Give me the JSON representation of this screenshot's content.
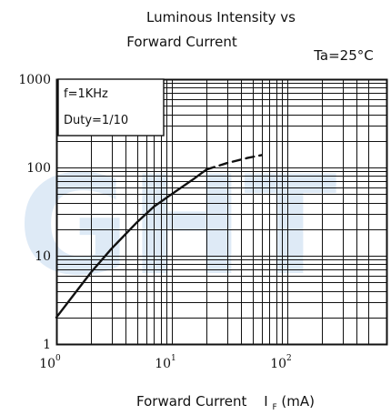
{
  "chart_data": {
    "type": "line",
    "title_line1": "Luminous Intensity vs",
    "title_line2": "Forward Current",
    "condition": "Ta=25°C",
    "xlabel_prefix": "Forward Current",
    "xlabel_symbol": "I",
    "xlabel_sub": "F",
    "xlabel_unit": "(mA)",
    "x_scale": "log",
    "y_scale": "log",
    "xlim": [
      1,
      500
    ],
    "ylim": [
      1,
      1000
    ],
    "grid": true,
    "x_ticks": [
      {
        "base": "10",
        "exp": "0"
      },
      {
        "base": "10",
        "exp": "1"
      },
      {
        "base": "10",
        "exp": "2"
      }
    ],
    "y_ticks": [
      "1000",
      "100",
      "10",
      "1"
    ],
    "legend_lines": [
      "f=1KHz",
      "Duty=1/10"
    ],
    "legend_placement": "top-left",
    "watermark": "GHT",
    "watermark_color": "#dbe8f6",
    "series": [
      {
        "style": "solid",
        "x": [
          1,
          1.5,
          2,
          3,
          5,
          7,
          10,
          15,
          20
        ],
        "y": [
          2.0,
          4.0,
          6.5,
          12,
          24,
          36,
          50,
          72,
          95
        ]
      },
      {
        "style": "dashed",
        "x": [
          20,
          30,
          45,
          60
        ],
        "y": [
          95,
          112,
          128,
          138
        ]
      }
    ]
  }
}
